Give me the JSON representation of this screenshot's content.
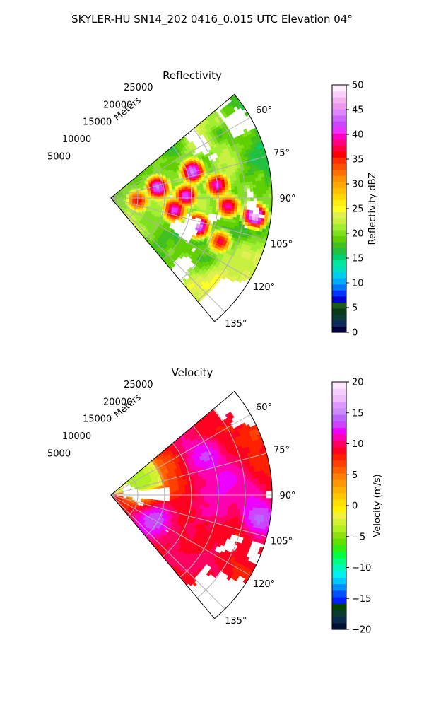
{
  "figure": {
    "title": "SKYLER-HU  SN14_202  0416_0.015 UTC Elevation 04°"
  },
  "chart_data": [
    {
      "type": "heatmap",
      "projection": "polar-sector",
      "title": "Reflectivity",
      "radial_axis_label": "Meters",
      "radial_ticks": [
        5000,
        10000,
        15000,
        20000,
        25000
      ],
      "radial_tick_labels": [
        "5000",
        "10000",
        "15000",
        "20000",
        "25000"
      ],
      "radial_range": [
        0,
        30000
      ],
      "azimuth_range_deg": [
        50,
        140
      ],
      "azimuth_ticks_deg": [
        60,
        75,
        90,
        105,
        120,
        135
      ],
      "azimuth_tick_labels": [
        "60°",
        "75°",
        "90°",
        "105°",
        "120°",
        "135°"
      ],
      "grid": true,
      "colorbar": {
        "label": "Reflectivity dBZ",
        "range": [
          0,
          50
        ],
        "ticks": [
          "0",
          "5",
          "10",
          "15",
          "20",
          "25",
          "30",
          "35",
          "40",
          "45",
          "50"
        ],
        "colormap": "pyart_NWSRef-like"
      },
      "storm_cells": [
        {
          "az": 72,
          "r": 16000,
          "peak_dbz": 45
        },
        {
          "az": 78,
          "r": 9000,
          "peak_dbz": 43
        },
        {
          "az": 83,
          "r": 20000,
          "peak_dbz": 42
        },
        {
          "az": 88,
          "r": 14000,
          "peak_dbz": 41
        },
        {
          "az": 94,
          "r": 22000,
          "peak_dbz": 40
        },
        {
          "az": 97,
          "r": 27000,
          "peak_dbz": 48
        },
        {
          "az": 101,
          "r": 12000,
          "peak_dbz": 42
        },
        {
          "az": 108,
          "r": 17000,
          "peak_dbz": 46
        },
        {
          "az": 112,
          "r": 22000,
          "peak_dbz": 38
        },
        {
          "az": 95,
          "r": 5000,
          "peak_dbz": 36
        }
      ]
    },
    {
      "type": "heatmap",
      "projection": "polar-sector",
      "title": "Velocity",
      "radial_axis_label": "Meters",
      "radial_ticks": [
        5000,
        10000,
        15000,
        20000,
        25000
      ],
      "radial_tick_labels": [
        "5000",
        "10000",
        "15000",
        "20000",
        "25000"
      ],
      "radial_range": [
        0,
        30000
      ],
      "azimuth_range_deg": [
        50,
        140
      ],
      "azimuth_ticks_deg": [
        60,
        75,
        90,
        105,
        120,
        135
      ],
      "azimuth_tick_labels": [
        "60°",
        "75°",
        "90°",
        "105°",
        "120°",
        "135°"
      ],
      "grid": true,
      "colorbar": {
        "label": "Velocity (m/s)",
        "range": [
          -20,
          20
        ],
        "ticks": [
          "−20",
          "−15",
          "−10",
          "−5",
          "0",
          "5",
          "10",
          "15",
          "20"
        ],
        "colormap": "pyart_BuDRd-like"
      },
      "features": [
        {
          "az": 68,
          "r": 19000,
          "peak_ms": 13
        },
        {
          "az": 82,
          "r": 22000,
          "peak_ms": 12
        },
        {
          "az": 99,
          "r": 28000,
          "peak_ms": 14
        },
        {
          "az": 118,
          "r": 9000,
          "peak_ms": 14
        },
        {
          "az": 66,
          "r": 6000,
          "peak_ms": -4
        }
      ]
    }
  ]
}
